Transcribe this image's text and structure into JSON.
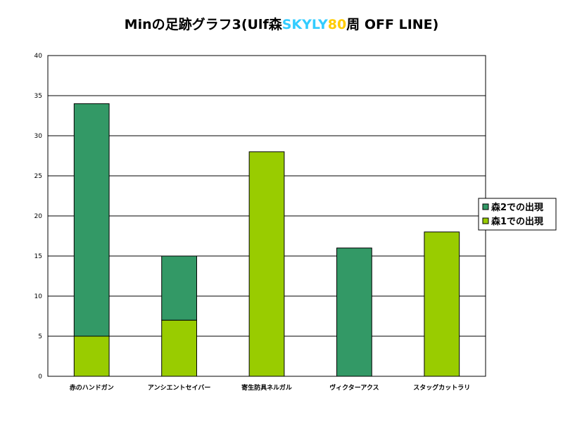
{
  "chart_data": {
    "type": "bar",
    "stacked": true,
    "title_parts": [
      {
        "text": "Minの足跡グラフ3(Ulf森",
        "color": "#000000"
      },
      {
        "text": "SKYLY",
        "color": "#33ccff"
      },
      {
        "text": "80",
        "color": "#ffcc00"
      },
      {
        "text": "周 OFF LINE)",
        "color": "#000000"
      }
    ],
    "categories": [
      "赤のハンドガン",
      "アンシエントセイバー",
      "寄生防具ネルガル",
      "ヴィクターアクス",
      "スタッグカットラリ"
    ],
    "series": [
      {
        "name": "森1での出現",
        "color": "#99cc00",
        "values": [
          5,
          7,
          28,
          0,
          18
        ]
      },
      {
        "name": "森2での出現",
        "color": "#339966",
        "values": [
          29,
          8,
          0,
          16,
          0
        ]
      }
    ],
    "legend_order": [
      "森2での出現",
      "森1での出現"
    ],
    "ylim": [
      0,
      40
    ],
    "yticks": [
      0,
      5,
      10,
      15,
      20,
      25,
      30,
      35,
      40
    ],
    "grid": true,
    "legend_position": "right"
  }
}
